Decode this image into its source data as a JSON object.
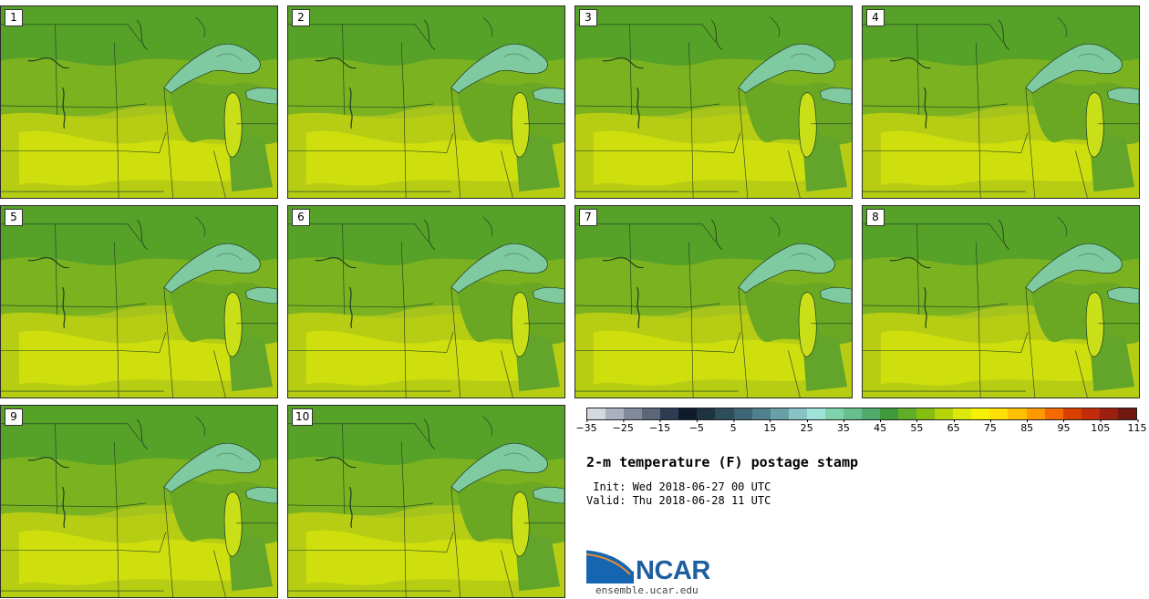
{
  "panels": [
    {
      "label": "1"
    },
    {
      "label": "2"
    },
    {
      "label": "3"
    },
    {
      "label": "4"
    },
    {
      "label": "5"
    },
    {
      "label": "6"
    },
    {
      "label": "7"
    },
    {
      "label": "8"
    },
    {
      "label": "9"
    },
    {
      "label": "10"
    }
  ],
  "colorbar": {
    "colors": [
      "#d4d9e0",
      "#a9b2be",
      "#7f8a9a",
      "#5b6679",
      "#2f3b52",
      "#0f1a2c",
      "#1e3342",
      "#2e4d5b",
      "#3d6674",
      "#4f808b",
      "#68a0a8",
      "#88c3c6",
      "#9ee2da",
      "#7fd3aa",
      "#66c08c",
      "#4fab6c",
      "#3f9a3c",
      "#5fae2a",
      "#86bd12",
      "#b6d40a",
      "#dbe80a",
      "#f5f200",
      "#ffe000",
      "#ffc000",
      "#ff9900",
      "#f26a00",
      "#d94000",
      "#c02c0a",
      "#9b2010",
      "#701a10"
    ],
    "tick_labels": [
      "−35",
      "−25",
      "−15",
      "−5",
      "5",
      "15",
      "25",
      "35",
      "45",
      "55",
      "65",
      "75",
      "85",
      "95",
      "105",
      "115"
    ]
  },
  "title": "2-m temperature (F) postage stamp",
  "init": " Init: Wed 2018-06-27 00 UTC",
  "valid": "Valid: Thu 2018-06-28 11 UTC",
  "logo_text": "NCAR",
  "url": "ensemble.ucar.edu",
  "icons": {
    "logo": "ncar-logo-icon"
  }
}
